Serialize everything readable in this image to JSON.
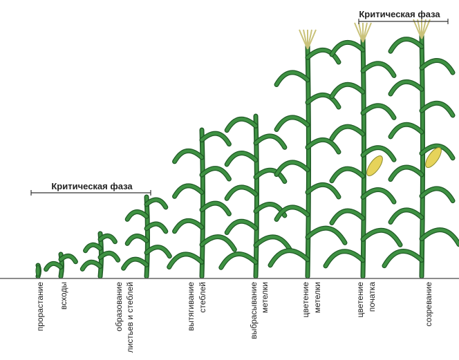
{
  "critical_phases": [
    "Критическая фаза",
    "Критическая фаза"
  ],
  "stages": [
    [
      "прорастание"
    ],
    [
      "всходы"
    ],
    [
      "образование",
      "листьев и стеблей"
    ],
    [
      "вытягивание",
      "стеблей"
    ],
    [
      "выбрасывание",
      "метелки"
    ],
    [
      "цветение",
      "метелки"
    ],
    [
      "цветение",
      "початка"
    ],
    [
      "созревание"
    ]
  ]
}
